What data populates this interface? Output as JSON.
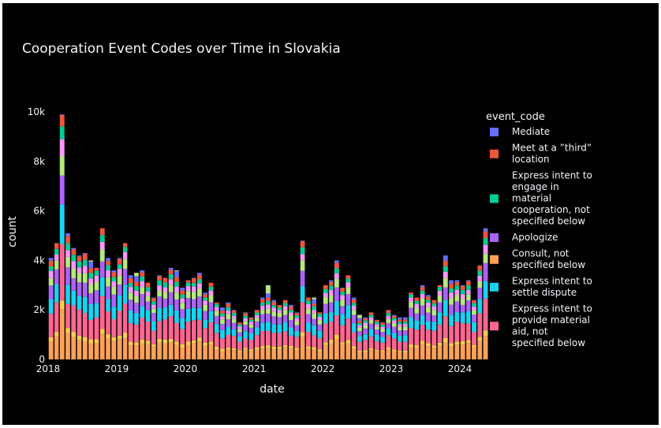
{
  "chart_data": {
    "type": "bar",
    "barmode": "stack",
    "title": "Cooperation Event Codes over Time in Slovakia",
    "xlabel": "date",
    "ylabel": "count",
    "x_range": [
      "2018-01-01",
      "2024-05-31"
    ],
    "ylim": [
      0,
      10000
    ],
    "x_ticks": [
      "2018",
      "2019",
      "2020",
      "2021",
      "2022",
      "2023",
      "2024"
    ],
    "y_ticks": [
      "0",
      "2k",
      "4k",
      "6k",
      "8k",
      "10k"
    ],
    "grid": false,
    "legend_title": "event_code",
    "legend_position": "right",
    "legend_entries": [
      {
        "name": "Mediate",
        "color": "#636efa"
      },
      {
        "name": "Meet at a ”third” location",
        "color": "#ef553b"
      },
      {
        "name": "Express intent to engage in material cooperation, not specified below",
        "color": "#00cc96"
      },
      {
        "name": "Apologize",
        "color": "#ab63fa"
      },
      {
        "name": "Consult, not specified below",
        "color": "#ffa15a"
      },
      {
        "name": "Express intent to settle dispute",
        "color": "#19d3f3"
      },
      {
        "name": "Express intent to provide material aid, not specified below",
        "color": "#ff6692"
      }
    ],
    "series_colors": [
      "#ffa15a",
      "#fecb52",
      "#ff6692",
      "#19d3f3",
      "#ab63fa",
      "#b6e880",
      "#ff97ff",
      "#00cc96",
      "#ef553b",
      "#636efa"
    ],
    "series_fractions": [
      0.18,
      0.04,
      0.22,
      0.14,
      0.12,
      0.08,
      0.06,
      0.05,
      0.05,
      0.06
    ],
    "months": [
      "2018-01",
      "2018-02",
      "2018-03",
      "2018-04",
      "2018-05",
      "2018-06",
      "2018-07",
      "2018-08",
      "2018-09",
      "2018-10",
      "2018-11",
      "2018-12",
      "2019-01",
      "2019-02",
      "2019-03",
      "2019-04",
      "2019-05",
      "2019-06",
      "2019-07",
      "2019-08",
      "2019-09",
      "2019-10",
      "2019-11",
      "2019-12",
      "2020-01",
      "2020-02",
      "2020-03",
      "2020-04",
      "2020-05",
      "2020-06",
      "2020-07",
      "2020-08",
      "2020-09",
      "2020-10",
      "2020-11",
      "2020-12",
      "2021-01",
      "2021-02",
      "2021-03",
      "2021-04",
      "2021-05",
      "2021-06",
      "2021-07",
      "2021-08",
      "2021-09",
      "2021-10",
      "2021-11",
      "2021-12",
      "2022-01",
      "2022-02",
      "2022-03",
      "2022-04",
      "2022-05",
      "2022-06",
      "2022-07",
      "2022-08",
      "2022-09",
      "2022-10",
      "2022-11",
      "2022-12",
      "2023-01",
      "2023-02",
      "2023-03",
      "2023-04",
      "2023-05",
      "2023-06",
      "2023-07",
      "2023-08",
      "2023-09",
      "2023-10",
      "2023-11",
      "2023-12",
      "2024-01",
      "2024-02",
      "2024-03",
      "2024-04",
      "2024-05"
    ],
    "totals": [
      4100,
      4700,
      9900,
      5100,
      4500,
      4200,
      4300,
      4000,
      3700,
      5300,
      4100,
      3600,
      4100,
      4700,
      3400,
      3500,
      3600,
      3100,
      2500,
      3400,
      3300,
      3700,
      3600,
      2900,
      3200,
      3300,
      3500,
      2700,
      3100,
      2300,
      2100,
      2300,
      2000,
      1500,
      1900,
      1700,
      2000,
      2500,
      3000,
      2400,
      2200,
      2400,
      2200,
      1900,
      4800,
      2500,
      2500,
      1900,
      3000,
      3200,
      4000,
      2900,
      3400,
      2500,
      1800,
      1700,
      1900,
      1600,
      1500,
      2000,
      1800,
      1700,
      1700,
      2700,
      2500,
      3000,
      2600,
      2400,
      3000,
      4200,
      3200,
      3200,
      3000,
      3200,
      2400,
      3800,
      5300
    ]
  }
}
